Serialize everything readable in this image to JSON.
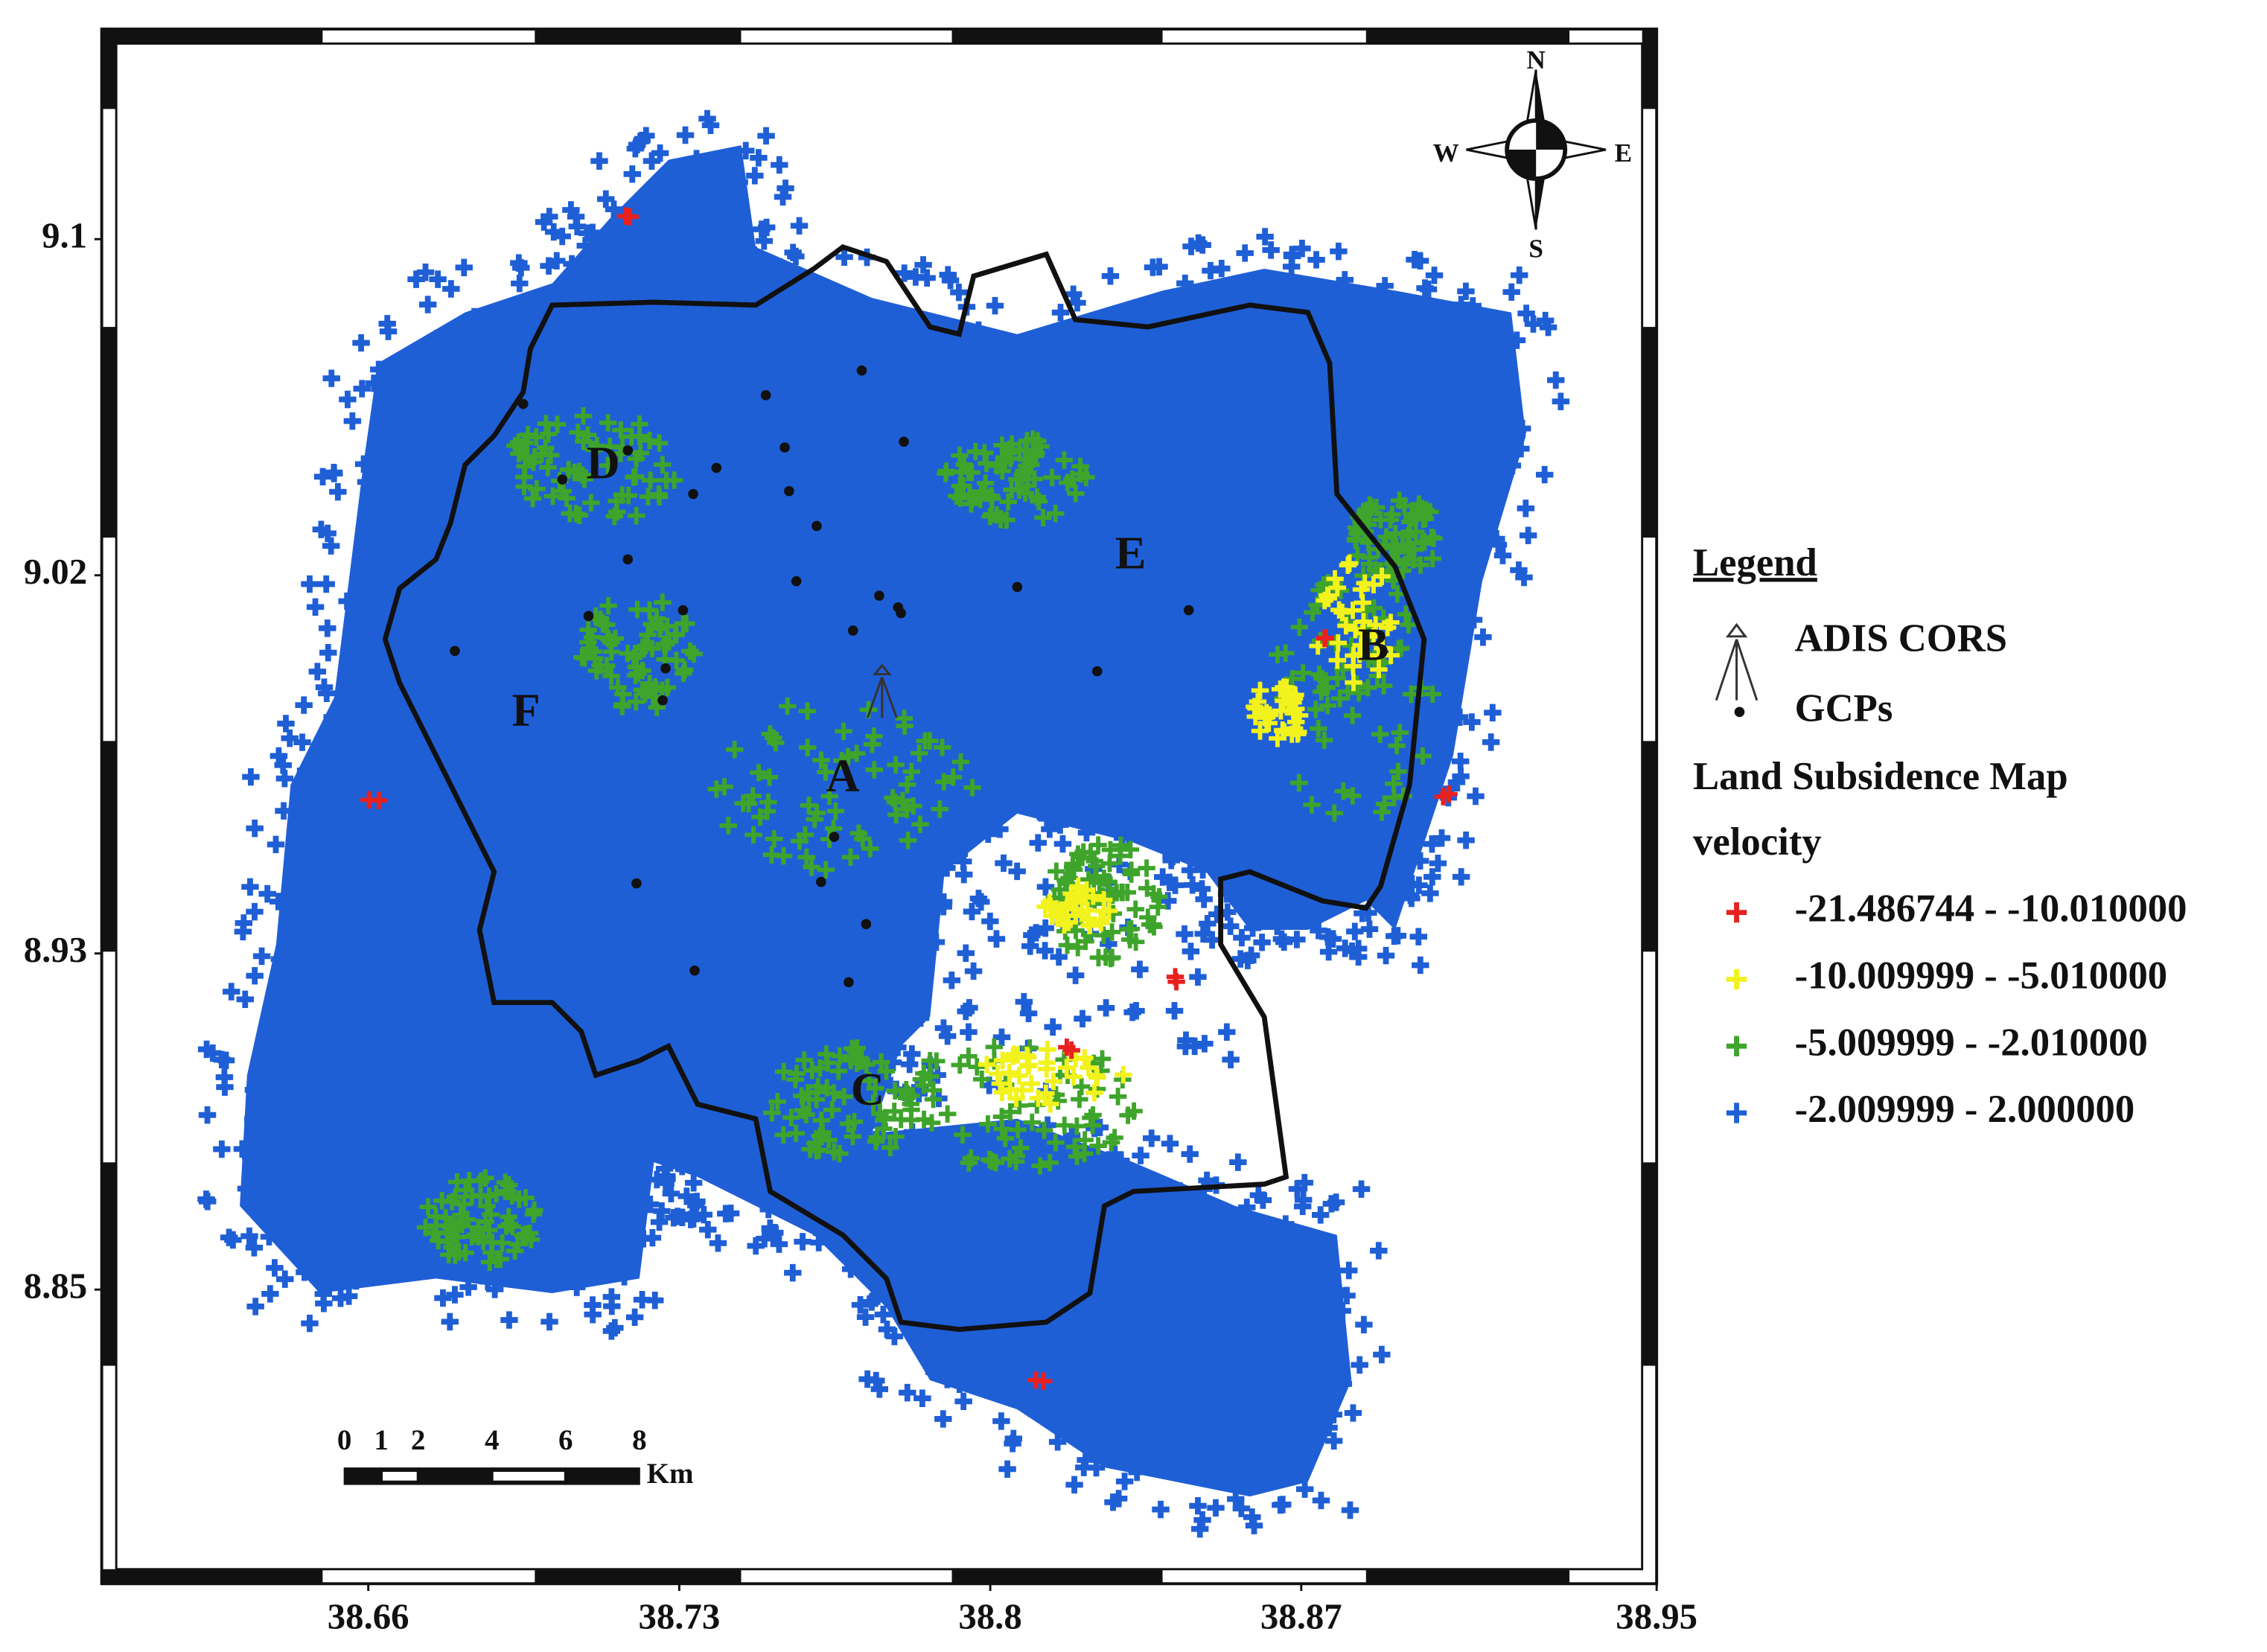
{
  "map": {
    "xlim": [
      38.6,
      38.95
    ],
    "ylim": [
      8.78,
      9.15
    ],
    "xticks": [
      38.66,
      38.73,
      38.8,
      38.87,
      38.95
    ],
    "yticks": [
      9.1,
      9.02,
      8.93,
      8.85
    ],
    "compass": {
      "n": "N",
      "s": "S",
      "e": "E",
      "w": "W"
    },
    "zones": [
      "A",
      "B",
      "C",
      "D",
      "E",
      "F"
    ],
    "scale_bar": {
      "ticks": [
        0,
        1,
        2,
        4,
        6,
        8
      ],
      "unit": "Km"
    },
    "legend": {
      "title": "Legend",
      "items": [
        "ADIS CORS",
        "GCPs"
      ],
      "layer": "Land Subsidence Map",
      "field": "velocity",
      "classes": [
        {
          "label": "-21.486744 - -10.010000",
          "color": "#e8211f"
        },
        {
          "label": "-10.009999 - -5.010000",
          "color": "#f2f21c"
        },
        {
          "label": "-5.009999 - -2.010000",
          "color": "#3fa42b"
        },
        {
          "label": "-2.009999 - 2.000000",
          "color": "#1f5fd6"
        }
      ]
    }
  }
}
